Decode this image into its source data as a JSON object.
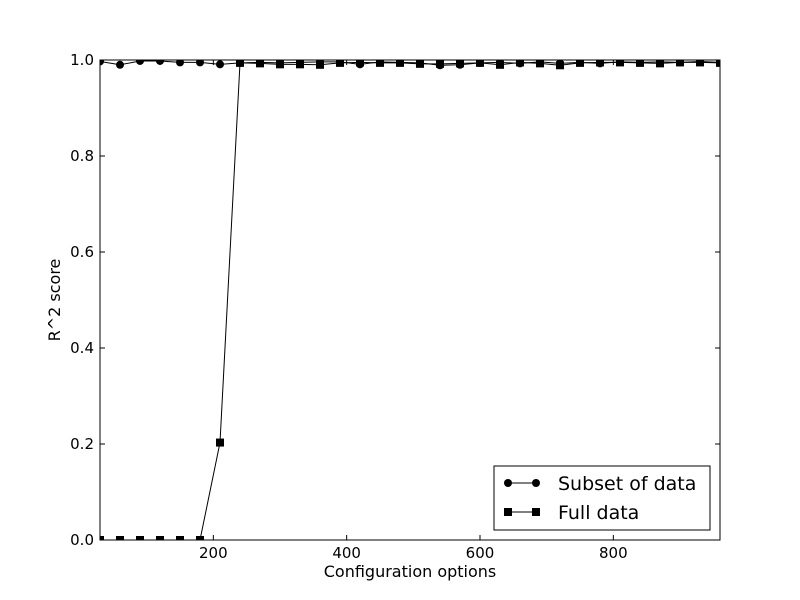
{
  "chart_data": {
    "type": "line",
    "title": "",
    "xlabel": "Configuration options",
    "ylabel": "R^2 score",
    "xlim": [
      30,
      960
    ],
    "ylim": [
      0.0,
      1.0
    ],
    "xticks": [
      200,
      400,
      600,
      800
    ],
    "xtick_labels": [
      "200",
      "400",
      "600",
      "800"
    ],
    "yticks": [
      0.0,
      0.2,
      0.4,
      0.6,
      0.8,
      1.0
    ],
    "ytick_labels": [
      "0.0",
      "0.2",
      "0.4",
      "0.6",
      "0.8",
      "1.0"
    ],
    "grid": false,
    "legend_position": "lower-right",
    "x": [
      30,
      60,
      90,
      120,
      150,
      180,
      210,
      240,
      270,
      300,
      330,
      360,
      390,
      420,
      450,
      480,
      510,
      540,
      570,
      600,
      630,
      660,
      690,
      720,
      750,
      780,
      810,
      840,
      870,
      900,
      930,
      960
    ],
    "series": [
      {
        "name": "Subset of data",
        "marker": "circle",
        "color": "#000000",
        "values": [
          0.997,
          0.99,
          0.998,
          0.998,
          0.995,
          0.995,
          0.991,
          0.994,
          0.995,
          0.994,
          0.995,
          0.996,
          0.996,
          0.991,
          0.996,
          0.995,
          0.994,
          0.989,
          0.99,
          0.994,
          0.995,
          0.993,
          0.996,
          0.993,
          0.995,
          0.993,
          0.996,
          0.995,
          0.996,
          0.995,
          0.997,
          0.995
        ]
      },
      {
        "name": "Full data",
        "marker": "square",
        "color": "#000000",
        "values": [
          0.0,
          0.0,
          0.0,
          0.0,
          0.0,
          0.0,
          0.203,
          0.994,
          0.993,
          0.991,
          0.991,
          0.99,
          0.994,
          0.995,
          0.994,
          0.994,
          0.992,
          0.992,
          0.993,
          0.994,
          0.99,
          0.995,
          0.993,
          0.989,
          0.994,
          0.995,
          0.995,
          0.994,
          0.993,
          0.995,
          0.995,
          0.994
        ]
      }
    ]
  }
}
